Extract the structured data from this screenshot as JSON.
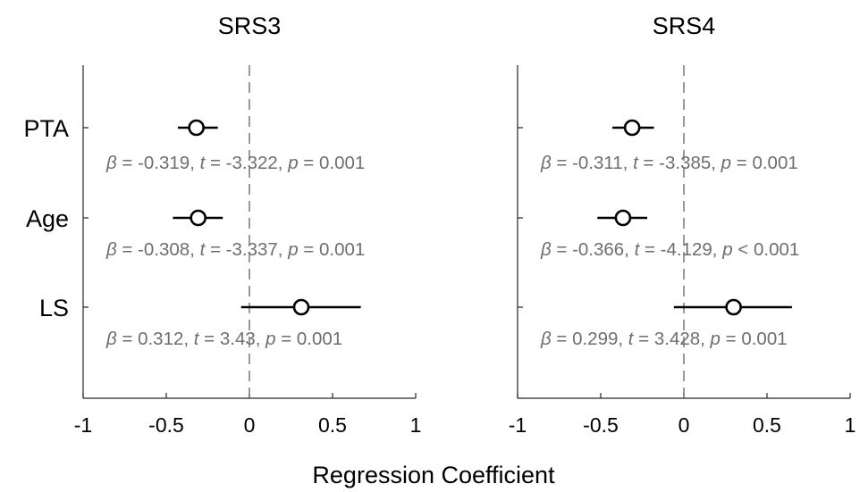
{
  "chart_data": [
    {
      "type": "scatter",
      "title": "SRS3",
      "categories": [
        "PTA",
        "Age",
        "LS"
      ],
      "xlim": [
        -1,
        1
      ],
      "xticks": [
        "-1",
        "-0.5",
        "0",
        "0.5",
        "1"
      ],
      "reference_line_x": 0,
      "points": [
        {
          "label": "PTA",
          "estimate": -0.319,
          "ci": [
            -0.43,
            -0.19
          ],
          "beta": "-0.319",
          "t": "-3.322",
          "p_op": "=",
          "p": "0.001"
        },
        {
          "label": "Age",
          "estimate": -0.308,
          "ci": [
            -0.46,
            -0.16
          ],
          "beta": "-0.308",
          "t": "-3.337",
          "p_op": "=",
          "p": "0.001"
        },
        {
          "label": "LS",
          "estimate": 0.312,
          "ci": [
            -0.05,
            0.67
          ],
          "beta": "0.312",
          "t": "3.43",
          "p_op": "=",
          "p": "0.001"
        }
      ]
    },
    {
      "type": "scatter",
      "title": "SRS4",
      "categories": [
        "PTA",
        "Age",
        "LS"
      ],
      "xlim": [
        -1,
        1
      ],
      "xticks": [
        "-1",
        "-0.5",
        "0",
        "0.5",
        "1"
      ],
      "reference_line_x": 0,
      "points": [
        {
          "label": "PTA",
          "estimate": -0.311,
          "ci": [
            -0.43,
            -0.18
          ],
          "beta": "-0.311",
          "t": "-3.385",
          "p_op": "=",
          "p": "0.001"
        },
        {
          "label": "Age",
          "estimate": -0.366,
          "ci": [
            -0.52,
            -0.22
          ],
          "beta": "-0.366",
          "t": "-4.129",
          "p_op": "<",
          "p": "0.001"
        },
        {
          "label": "LS",
          "estimate": 0.299,
          "ci": [
            -0.06,
            0.65
          ],
          "beta": "0.299",
          "t": "3.428",
          "p_op": "=",
          "p": "0.001"
        }
      ]
    }
  ],
  "xlabel": "Regression Coefficient",
  "annotation_symbols": {
    "beta": "β",
    "t": "t",
    "p": "p"
  }
}
